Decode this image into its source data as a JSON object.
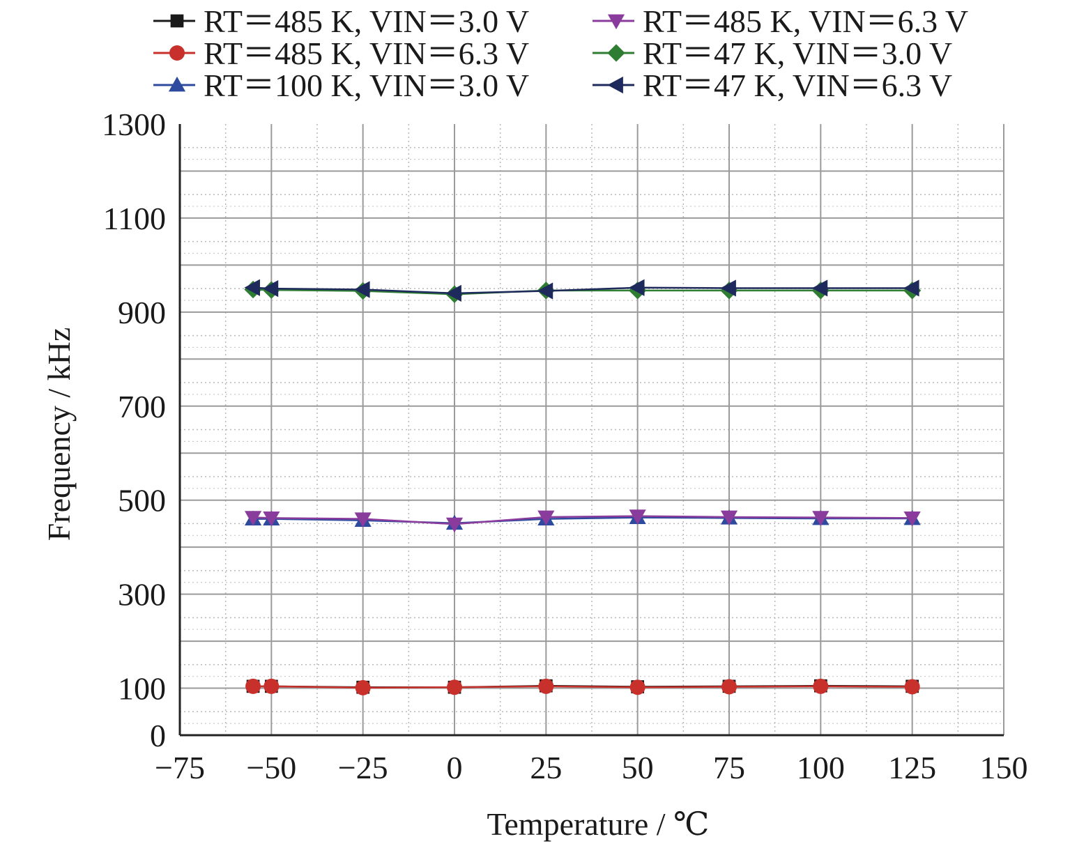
{
  "chart_data": {
    "type": "line",
    "xlabel": "Temperature / ℃",
    "ylabel": "Frequency / kHz",
    "xlim": [
      -75,
      150
    ],
    "ylim": [
      0,
      1300
    ],
    "x_ticks": [
      -75,
      -50,
      -25,
      0,
      25,
      50,
      75,
      100,
      125,
      150
    ],
    "x_tick_labels": [
      "−75",
      "−50",
      "−25",
      "0",
      "25",
      "50",
      "75",
      "100",
      "125",
      "150"
    ],
    "y_ticks": [
      0,
      100,
      300,
      500,
      700,
      900,
      1100,
      1300
    ],
    "y_tick_labels": [
      "0",
      "100",
      "300",
      "500",
      "700",
      "900",
      "1100",
      "1300"
    ],
    "grid": true,
    "legend_position": "top",
    "x": [
      -55,
      -50,
      -25,
      0,
      25,
      50,
      75,
      100,
      125
    ],
    "series": [
      {
        "name": "RT＝485 K, VIN＝3.0 V",
        "color": "#1a1a1a",
        "marker": "square",
        "values": [
          104,
          104,
          102,
          102,
          105,
          103,
          104,
          105,
          104
        ]
      },
      {
        "name": "RT＝485 K, VIN＝6.3 V",
        "color": "#c8312b",
        "marker": "circle",
        "values": [
          104,
          104,
          101,
          102,
          104,
          102,
          103,
          104,
          103
        ]
      },
      {
        "name": "RT＝100 K, VIN＝3.0 V",
        "color": "#2e4a9e",
        "marker": "triangle-up",
        "values": [
          460,
          460,
          457,
          451,
          460,
          463,
          462,
          461,
          461
        ]
      },
      {
        "name": "RT＝485 K, VIN＝6.3 V",
        "color": "#8a3c9c",
        "marker": "triangle-down",
        "values": [
          463,
          462,
          460,
          449,
          464,
          466,
          464,
          463,
          462
        ]
      },
      {
        "name": "RT＝47 K, VIN＝3.0 V",
        "color": "#2f7d32",
        "marker": "diamond",
        "values": [
          948,
          947,
          945,
          938,
          946,
          946,
          946,
          946,
          946
        ]
      },
      {
        "name": "RT＝47 K, VIN＝6.3 V",
        "color": "#1f2a5c",
        "marker": "triangle-left",
        "values": [
          952,
          950,
          948,
          940,
          945,
          952,
          951,
          951,
          951
        ]
      }
    ]
  }
}
